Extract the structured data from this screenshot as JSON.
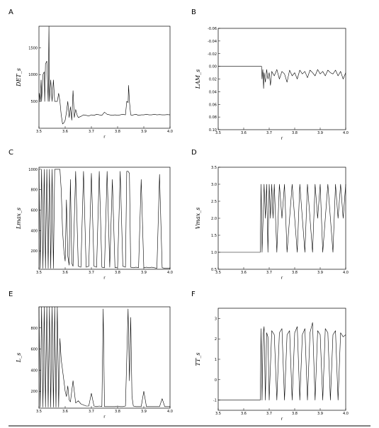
{
  "chart_data": [
    {
      "id": "A",
      "panel_label": "A",
      "type": "line",
      "xlabel": "r",
      "ylabel": "DET_s",
      "xlim": [
        3.5,
        4.0
      ],
      "ylim": [
        0,
        1900
      ],
      "xticks": [
        "3.5",
        "3.6",
        "3.7",
        "3.8",
        "3.9",
        "4.0"
      ],
      "yticks": [
        {
          "v": 500,
          "t": "500"
        },
        {
          "v": 1000,
          "t": "1000"
        },
        {
          "v": 1500,
          "t": "1500"
        }
      ],
      "series": [
        {
          "x": [
            3.5,
            3.502,
            3.505,
            3.508,
            3.51,
            3.515,
            3.52,
            3.522,
            3.525,
            3.53,
            3.535,
            3.538,
            3.54,
            3.545,
            3.55,
            3.555,
            3.56,
            3.565,
            3.57,
            3.575,
            3.58,
            3.585,
            3.59,
            3.595,
            3.6,
            3.605,
            3.61,
            3.615,
            3.62,
            3.625,
            3.63,
            3.635,
            3.64,
            3.645,
            3.65,
            3.66,
            3.67,
            3.68,
            3.69,
            3.7,
            3.71,
            3.72,
            3.73,
            3.74,
            3.75,
            3.76,
            3.77,
            3.78,
            3.79,
            3.8,
            3.81,
            3.82,
            3.83,
            3.835,
            3.84,
            3.842,
            3.845,
            3.85,
            3.855,
            3.86,
            3.87,
            3.88,
            3.89,
            3.9,
            3.91,
            3.92,
            3.93,
            3.94,
            3.95,
            3.96,
            3.97,
            3.98,
            3.99,
            4.0
          ],
          "y": [
            500,
            650,
            500,
            900,
            500,
            1000,
            1050,
            500,
            1200,
            1250,
            500,
            1900,
            500,
            900,
            500,
            900,
            500,
            500,
            500,
            650,
            500,
            250,
            80,
            100,
            150,
            300,
            500,
            200,
            400,
            150,
            700,
            200,
            350,
            250,
            200,
            220,
            250,
            240,
            230,
            250,
            240,
            260,
            250,
            240,
            300,
            260,
            250,
            240,
            250,
            240,
            250,
            260,
            250,
            500,
            480,
            800,
            500,
            250,
            240,
            250,
            260,
            240,
            250,
            250,
            260,
            250,
            250,
            260,
            250,
            255,
            250,
            250,
            255,
            250
          ]
        }
      ]
    },
    {
      "id": "B",
      "panel_label": "B",
      "type": "line",
      "xlabel": "r",
      "ylabel": "LAM_s",
      "xlim": [
        3.5,
        4.0
      ],
      "ylim": [
        -0.06,
        0.1
      ],
      "y_inverted": true,
      "xticks": [
        "3.5",
        "3.6",
        "3.7",
        "3.8",
        "3.9",
        "4.0"
      ],
      "yticks": [
        {
          "v": -0.06,
          "t": "-0.06"
        },
        {
          "v": -0.04,
          "t": "-0.04"
        },
        {
          "v": -0.02,
          "t": "-0.02"
        },
        {
          "v": 0.0,
          "t": "0.00"
        },
        {
          "v": 0.02,
          "t": "0.02"
        },
        {
          "v": 0.04,
          "t": "0.04"
        },
        {
          "v": 0.06,
          "t": "0.06"
        },
        {
          "v": 0.08,
          "t": "0.08"
        },
        {
          "v": 0.1,
          "t": "0.10"
        }
      ],
      "series": [
        {
          "x": [
            3.5,
            3.67,
            3.672,
            3.675,
            3.678,
            3.68,
            3.685,
            3.69,
            3.695,
            3.7,
            3.705,
            3.71,
            3.72,
            3.73,
            3.74,
            3.75,
            3.76,
            3.77,
            3.78,
            3.79,
            3.8,
            3.81,
            3.82,
            3.83,
            3.84,
            3.85,
            3.86,
            3.87,
            3.88,
            3.89,
            3.9,
            3.91,
            3.92,
            3.93,
            3.94,
            3.95,
            3.96,
            3.97,
            3.98,
            3.99,
            4.0
          ],
          "y": [
            0.0,
            0.0,
            0.02,
            0.005,
            0.035,
            0.01,
            0.025,
            0.005,
            0.02,
            0.01,
            0.03,
            0.008,
            0.015,
            0.005,
            0.02,
            0.008,
            0.012,
            0.025,
            0.006,
            0.015,
            0.01,
            0.02,
            0.006,
            0.012,
            0.008,
            0.018,
            0.006,
            0.01,
            0.015,
            0.005,
            0.012,
            0.008,
            0.015,
            0.006,
            0.01,
            0.012,
            0.006,
            0.015,
            0.008,
            0.02,
            0.01
          ]
        }
      ]
    },
    {
      "id": "C",
      "panel_label": "C",
      "type": "line",
      "xlabel": "r",
      "ylabel": "Lmax_s",
      "xlim": [
        3.5,
        4.0
      ],
      "ylim": [
        20,
        1020
      ],
      "xticks": [
        "3.5",
        "3.6",
        "3.7",
        "3.8",
        "3.9",
        "4.0"
      ],
      "yticks": [
        {
          "v": 200,
          "t": "200"
        },
        {
          "v": 400,
          "t": "400"
        },
        {
          "v": 600,
          "t": "600"
        },
        {
          "v": 800,
          "t": "800"
        },
        {
          "v": 1000,
          "t": "1000"
        }
      ],
      "series": [
        {
          "x": [
            3.5,
            3.505,
            3.51,
            3.515,
            3.52,
            3.525,
            3.53,
            3.535,
            3.54,
            3.545,
            3.55,
            3.555,
            3.56,
            3.565,
            3.57,
            3.575,
            3.58,
            3.585,
            3.59,
            3.595,
            3.6,
            3.605,
            3.61,
            3.615,
            3.62,
            3.625,
            3.63,
            3.64,
            3.65,
            3.66,
            3.67,
            3.68,
            3.69,
            3.7,
            3.71,
            3.72,
            3.73,
            3.74,
            3.75,
            3.76,
            3.77,
            3.78,
            3.79,
            3.8,
            3.81,
            3.82,
            3.83,
            3.835,
            3.84,
            3.845,
            3.85,
            3.86,
            3.87,
            3.88,
            3.89,
            3.9,
            3.91,
            3.92,
            3.93,
            3.94,
            3.95,
            3.96,
            3.97,
            3.98,
            3.99,
            4.0
          ],
          "y": [
            1000,
            30,
            1000,
            30,
            1000,
            30,
            1000,
            30,
            1000,
            30,
            1000,
            30,
            1000,
            1000,
            1000,
            1000,
            1000,
            800,
            400,
            200,
            100,
            700,
            150,
            60,
            900,
            80,
            50,
            980,
            50,
            40,
            980,
            40,
            50,
            960,
            50,
            40,
            980,
            40,
            35,
            980,
            40,
            900,
            35,
            40,
            980,
            50,
            40,
            980,
            980,
            960,
            40,
            35,
            40,
            35,
            900,
            35,
            40,
            35,
            40,
            35,
            30,
            950,
            35,
            30,
            30,
            30
          ]
        }
      ]
    },
    {
      "id": "D",
      "panel_label": "D",
      "type": "line",
      "xlabel": "r",
      "ylabel": "Vmax_s",
      "xlim": [
        3.5,
        4.0
      ],
      "ylim": [
        0.5,
        3.5
      ],
      "xticks": [
        "3.5",
        "3.6",
        "3.7",
        "3.8",
        "3.9",
        "4.0"
      ],
      "yticks": [
        {
          "v": 0.5,
          "t": "0.5"
        },
        {
          "v": 1.0,
          "t": "1.0"
        },
        {
          "v": 1.5,
          "t": "1.5"
        },
        {
          "v": 2.0,
          "t": "2.0"
        },
        {
          "v": 2.5,
          "t": "2.5"
        },
        {
          "v": 3.0,
          "t": "3.0"
        },
        {
          "v": 3.5,
          "t": "3.5"
        }
      ],
      "series": [
        {
          "x": [
            3.5,
            3.665,
            3.668,
            3.672,
            3.676,
            3.68,
            3.685,
            3.69,
            3.695,
            3.7,
            3.705,
            3.71,
            3.715,
            3.72,
            3.73,
            3.74,
            3.75,
            3.76,
            3.77,
            3.78,
            3.79,
            3.8,
            3.81,
            3.82,
            3.83,
            3.84,
            3.85,
            3.86,
            3.87,
            3.88,
            3.89,
            3.9,
            3.91,
            3.92,
            3.93,
            3.94,
            3.95,
            3.96,
            3.97,
            3.98,
            3.99,
            4.0
          ],
          "y": [
            1.0,
            1.0,
            3.0,
            1.0,
            2.0,
            3.0,
            2.0,
            3.0,
            1.0,
            3.0,
            2.0,
            3.0,
            2.0,
            3.0,
            1.0,
            3.0,
            2.0,
            3.0,
            1.0,
            2.0,
            3.0,
            2.0,
            1.0,
            3.0,
            2.0,
            1.0,
            3.0,
            2.0,
            1.0,
            3.0,
            2.0,
            3.0,
            1.0,
            2.0,
            3.0,
            2.0,
            1.0,
            3.0,
            2.0,
            3.0,
            2.0,
            3.0
          ]
        }
      ]
    },
    {
      "id": "E",
      "panel_label": "E",
      "type": "line",
      "xlabel": "r",
      "ylabel": "L_s",
      "xlim": [
        3.5,
        4.0
      ],
      "ylim": [
        40,
        1000
      ],
      "xticks": [
        "3.5",
        "3.6",
        "3.7",
        "3.8",
        "3.9",
        "4.0"
      ],
      "yticks": [
        {
          "v": 200,
          "t": "200"
        },
        {
          "v": 400,
          "t": "400"
        },
        {
          "v": 600,
          "t": "600"
        },
        {
          "v": 800,
          "t": "800"
        }
      ],
      "series": [
        {
          "x": [
            3.5,
            3.505,
            3.51,
            3.515,
            3.52,
            3.525,
            3.53,
            3.535,
            3.54,
            3.545,
            3.55,
            3.555,
            3.56,
            3.565,
            3.57,
            3.575,
            3.58,
            3.585,
            3.59,
            3.595,
            3.6,
            3.605,
            3.61,
            3.615,
            3.62,
            3.63,
            3.64,
            3.65,
            3.66,
            3.67,
            3.68,
            3.69,
            3.7,
            3.71,
            3.72,
            3.73,
            3.74,
            3.745,
            3.75,
            3.76,
            3.77,
            3.78,
            3.79,
            3.8,
            3.81,
            3.82,
            3.83,
            3.84,
            3.845,
            3.85,
            3.855,
            3.86,
            3.87,
            3.88,
            3.89,
            3.9,
            3.91,
            3.92,
            3.93,
            3.94,
            3.95,
            3.96,
            3.97,
            3.98,
            3.99,
            4.0
          ],
          "y": [
            1000,
            50,
            1000,
            50,
            1000,
            50,
            1000,
            50,
            1000,
            50,
            1000,
            50,
            1000,
            50,
            1000,
            50,
            700,
            500,
            400,
            300,
            200,
            150,
            250,
            120,
            100,
            300,
            90,
            110,
            80,
            70,
            60,
            60,
            180,
            60,
            55,
            60,
            55,
            980,
            55,
            55,
            55,
            55,
            55,
            60,
            55,
            55,
            60,
            980,
            300,
            900,
            150,
            60,
            55,
            55,
            55,
            200,
            55,
            55,
            55,
            55,
            55,
            55,
            130,
            55,
            55,
            55
          ]
        }
      ]
    },
    {
      "id": "F",
      "panel_label": "F",
      "type": "line",
      "xlabel": "r",
      "ylabel": "TT_s",
      "xlim": [
        3.5,
        4.0
      ],
      "ylim": [
        -1.5,
        3.5
      ],
      "xticks": [
        "3.5",
        "3.6",
        "3.7",
        "3.8",
        "3.9",
        "4.0"
      ],
      "yticks": [
        {
          "v": -1,
          "t": "-1"
        },
        {
          "v": 0,
          "t": "0"
        },
        {
          "v": 1,
          "t": "1"
        },
        {
          "v": 2,
          "t": "2"
        },
        {
          "v": 3,
          "t": "3"
        }
      ],
      "series": [
        {
          "x": [
            3.5,
            3.665,
            3.668,
            3.672,
            3.676,
            3.68,
            3.685,
            3.69,
            3.695,
            3.7,
            3.71,
            3.72,
            3.73,
            3.74,
            3.75,
            3.76,
            3.77,
            3.78,
            3.79,
            3.8,
            3.81,
            3.82,
            3.83,
            3.84,
            3.85,
            3.86,
            3.87,
            3.88,
            3.89,
            3.9,
            3.91,
            3.92,
            3.93,
            3.94,
            3.95,
            3.96,
            3.97,
            3.98,
            3.99,
            4.0
          ],
          "y": [
            -1,
            -1,
            2.5,
            -1,
            2.2,
            2.6,
            -1,
            2.3,
            2.1,
            -1,
            2.4,
            2.2,
            -1,
            2.3,
            2.5,
            -1,
            2.2,
            2.4,
            -1,
            2.3,
            2.6,
            -1,
            2.2,
            2.5,
            -1,
            2.3,
            2.8,
            -1,
            2.4,
            2.2,
            -1,
            2.5,
            2.3,
            -1,
            2.2,
            2.4,
            -1,
            2.3,
            2.1,
            2.2
          ]
        }
      ]
    }
  ]
}
